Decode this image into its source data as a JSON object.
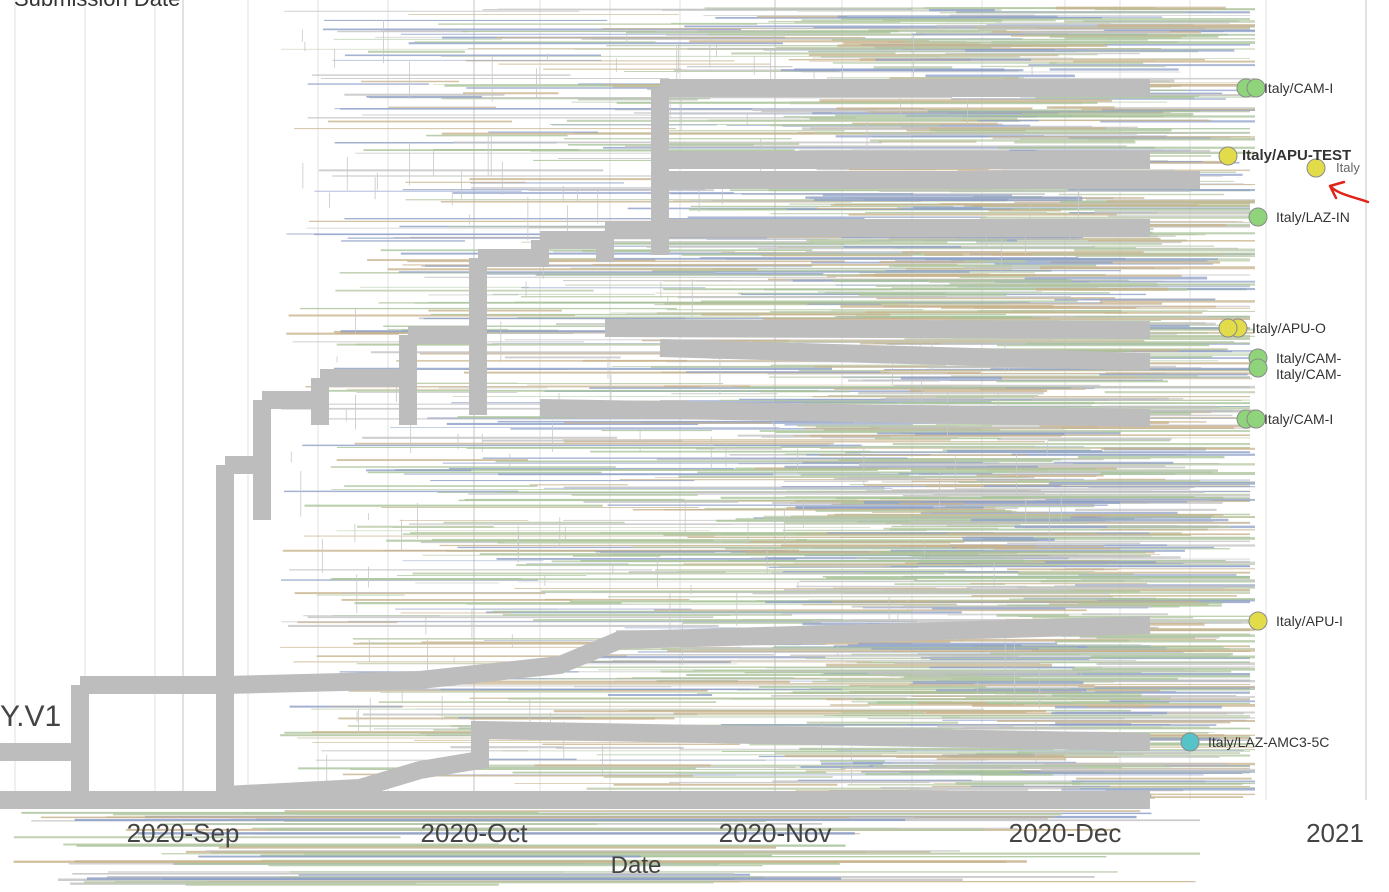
{
  "header": {
    "partial_label": "Submission Date"
  },
  "clade_label": "Y.V1",
  "axis": {
    "title": "Date",
    "ticks": [
      {
        "label": "2020-Sep"
      },
      {
        "label": "2020-Oct"
      },
      {
        "label": "2020-Nov"
      },
      {
        "label": "2020-Dec"
      },
      {
        "label": "2021"
      }
    ]
  },
  "tips": [
    {
      "label": "Italy/CAM-I",
      "color": "#8fd47a"
    },
    {
      "label": "Italy/APU-TEST",
      "color": "#e3dc4a"
    },
    {
      "label": "Italy",
      "color": "#e3dc4a"
    },
    {
      "label": "Italy/LAZ-IN",
      "color": "#8fd47a"
    },
    {
      "label": "Italy/APU-O",
      "color": "#e3dc4a"
    },
    {
      "label": "Italy/CAM-",
      "color": "#8fd47a"
    },
    {
      "label": "Italy/CAM-",
      "color": "#8fd47a"
    },
    {
      "label": "Italy/CAM-I",
      "color": "#8fd47a"
    },
    {
      "label": "Italy/APU-I",
      "color": "#e3dc4a"
    },
    {
      "label": "Italy/LAZ-AMC3-5C",
      "color": "#56c3c9"
    }
  ],
  "colors": {
    "backbone": "#bdbdbd",
    "grid": "#e2e2e2",
    "annotation_arrow": "#e0241b",
    "branch_palette": [
      "#c4c4c4",
      "#a9c49a",
      "#c9b38d",
      "#8ea0c8",
      "#b7c9a5"
    ]
  }
}
